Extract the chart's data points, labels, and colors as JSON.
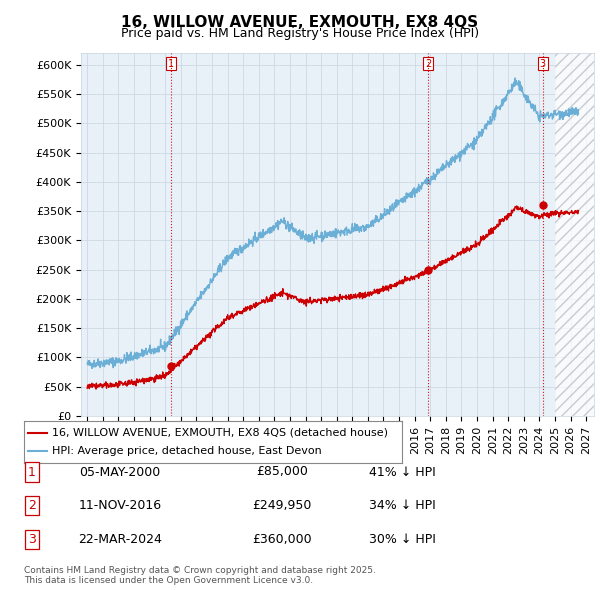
{
  "title": "16, WILLOW AVENUE, EXMOUTH, EX8 4QS",
  "subtitle": "Price paid vs. HM Land Registry's House Price Index (HPI)",
  "ylim": [
    0,
    620000
  ],
  "yticks": [
    0,
    50000,
    100000,
    150000,
    200000,
    250000,
    300000,
    350000,
    400000,
    450000,
    500000,
    550000,
    600000
  ],
  "ytick_labels": [
    "£0",
    "£50K",
    "£100K",
    "£150K",
    "£200K",
    "£250K",
    "£300K",
    "£350K",
    "£400K",
    "£450K",
    "£500K",
    "£550K",
    "£600K"
  ],
  "xlim_start": 1994.6,
  "xlim_end": 2027.5,
  "sale_dates": [
    2000.35,
    2016.87,
    2024.22
  ],
  "sale_prices": [
    85000,
    249950,
    360000
  ],
  "sale_labels": [
    "1",
    "2",
    "3"
  ],
  "sale_date_strings": [
    "05-MAY-2000",
    "11-NOV-2016",
    "22-MAR-2024"
  ],
  "sale_price_strings": [
    "£85,000",
    "£249,950",
    "£360,000"
  ],
  "sale_hpi_strings": [
    "41% ↓ HPI",
    "34% ↓ HPI",
    "30% ↓ HPI"
  ],
  "hpi_color": "#6baed6",
  "price_color": "#cc0000",
  "vline_color": "#cc0000",
  "grid_color": "#c8d4e0",
  "plot_bg_color": "#e8f0f8",
  "background_color": "#ffffff",
  "hatch_start": 2025.0,
  "legend_label_price": "16, WILLOW AVENUE, EXMOUTH, EX8 4QS (detached house)",
  "legend_label_hpi": "HPI: Average price, detached house, East Devon",
  "footer_text": "Contains HM Land Registry data © Crown copyright and database right 2025.\nThis data is licensed under the Open Government Licence v3.0.",
  "title_fontsize": 11,
  "subtitle_fontsize": 9,
  "tick_fontsize": 8,
  "legend_fontsize": 8,
  "table_fontsize": 9
}
